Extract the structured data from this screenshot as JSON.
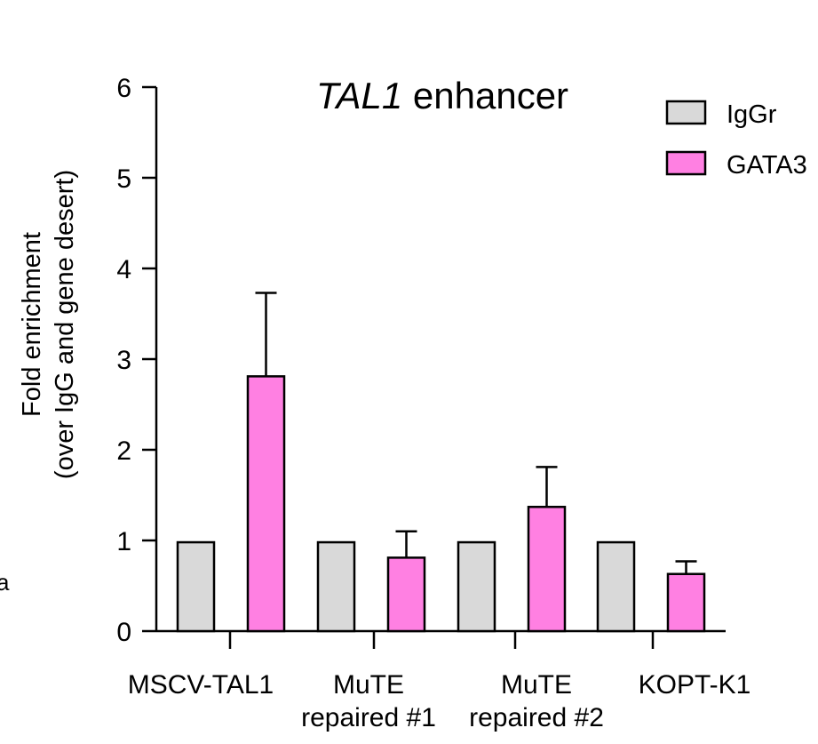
{
  "chart_data": {
    "type": "bar",
    "title_italic": "TAL1",
    "title_rest": " enhancer",
    "ylabel_line1": "Fold enrichment",
    "ylabel_line2": "(over IgG and gene desert)",
    "ylim": [
      0,
      6
    ],
    "yticks": [
      "0",
      "1",
      "2",
      "3",
      "4",
      "5",
      "6"
    ],
    "categories": [
      {
        "line1": "MSCV-TAL1",
        "line2": ""
      },
      {
        "line1": "MuTE",
        "line2": "repaired #1"
      },
      {
        "line1": "MuTE",
        "line2": "repaired #2"
      },
      {
        "line1": "KOPT-K1",
        "line2": ""
      }
    ],
    "series": [
      {
        "name": "IgGr",
        "color": "#d9d9d9",
        "values": [
          0.98,
          0.98,
          0.98,
          0.98
        ],
        "errors": [
          0,
          0,
          0,
          0
        ]
      },
      {
        "name": "GATA3",
        "color": "#ff80e2",
        "values": [
          2.81,
          0.81,
          1.37,
          0.63
        ],
        "errors": [
          0.92,
          0.29,
          0.44,
          0.14
        ]
      }
    ],
    "grid": false,
    "legend_position": "top-right"
  },
  "stray_text": "a"
}
